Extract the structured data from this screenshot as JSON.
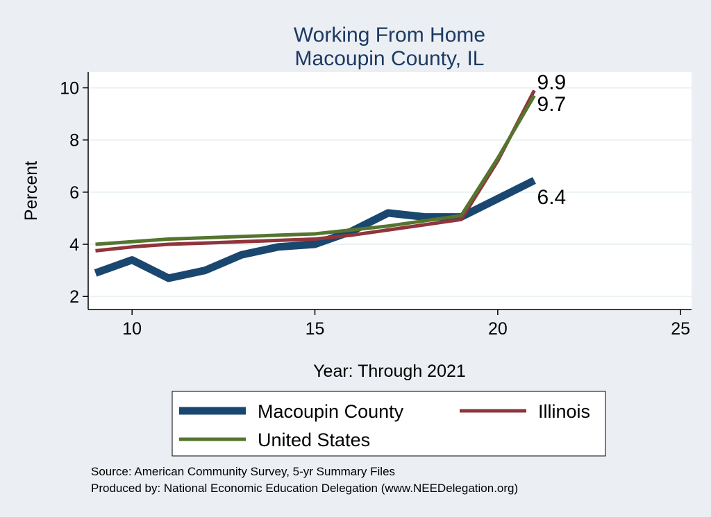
{
  "chart_data": {
    "type": "line",
    "title": [
      "Working From Home",
      "Macoupin County, IL"
    ],
    "xlabel": "Year: Through 2021",
    "ylabel": "Percent",
    "xlim": [
      8.8,
      25.3
    ],
    "ylim": [
      1.5,
      10.6
    ],
    "xticks": [
      10,
      15,
      20,
      25
    ],
    "yticks": [
      2,
      4,
      6,
      8,
      10
    ],
    "grid": true,
    "legend_position": "bottom",
    "series": [
      {
        "name": "Macoupin County",
        "color": "#1a476f",
        "x": [
          9,
          10,
          11,
          12,
          13,
          14,
          15,
          16,
          17,
          18,
          19,
          20,
          21
        ],
        "y": [
          2.9,
          3.4,
          2.7,
          3.0,
          3.6,
          3.9,
          4.0,
          4.5,
          5.2,
          5.05,
          5.05,
          5.75,
          6.45
        ]
      },
      {
        "name": "Illinois",
        "color": "#90353b",
        "x": [
          9,
          10,
          11,
          12,
          13,
          14,
          15,
          16,
          17,
          18,
          19,
          20,
          21
        ],
        "y": [
          3.75,
          3.9,
          4.0,
          4.05,
          4.1,
          4.15,
          4.2,
          4.35,
          4.55,
          4.75,
          4.95,
          7.2,
          9.9
        ]
      },
      {
        "name": "United States",
        "color": "#55752f",
        "x": [
          9,
          10,
          11,
          12,
          13,
          14,
          15,
          16,
          17,
          18,
          19,
          20,
          21
        ],
        "y": [
          4.0,
          4.1,
          4.2,
          4.25,
          4.3,
          4.35,
          4.4,
          4.55,
          4.7,
          4.9,
          5.1,
          7.3,
          9.7
        ]
      }
    ],
    "end_labels": [
      {
        "text": "9.9",
        "series": 1
      },
      {
        "text": "9.7",
        "series": 2
      },
      {
        "text": "6.4",
        "series": 0
      }
    ],
    "notes": [
      "Source: American Community Survey, 5-yr Summary Files",
      "Produced by: National Economic Education Delegation (www.NEEDelegation.org)"
    ]
  }
}
